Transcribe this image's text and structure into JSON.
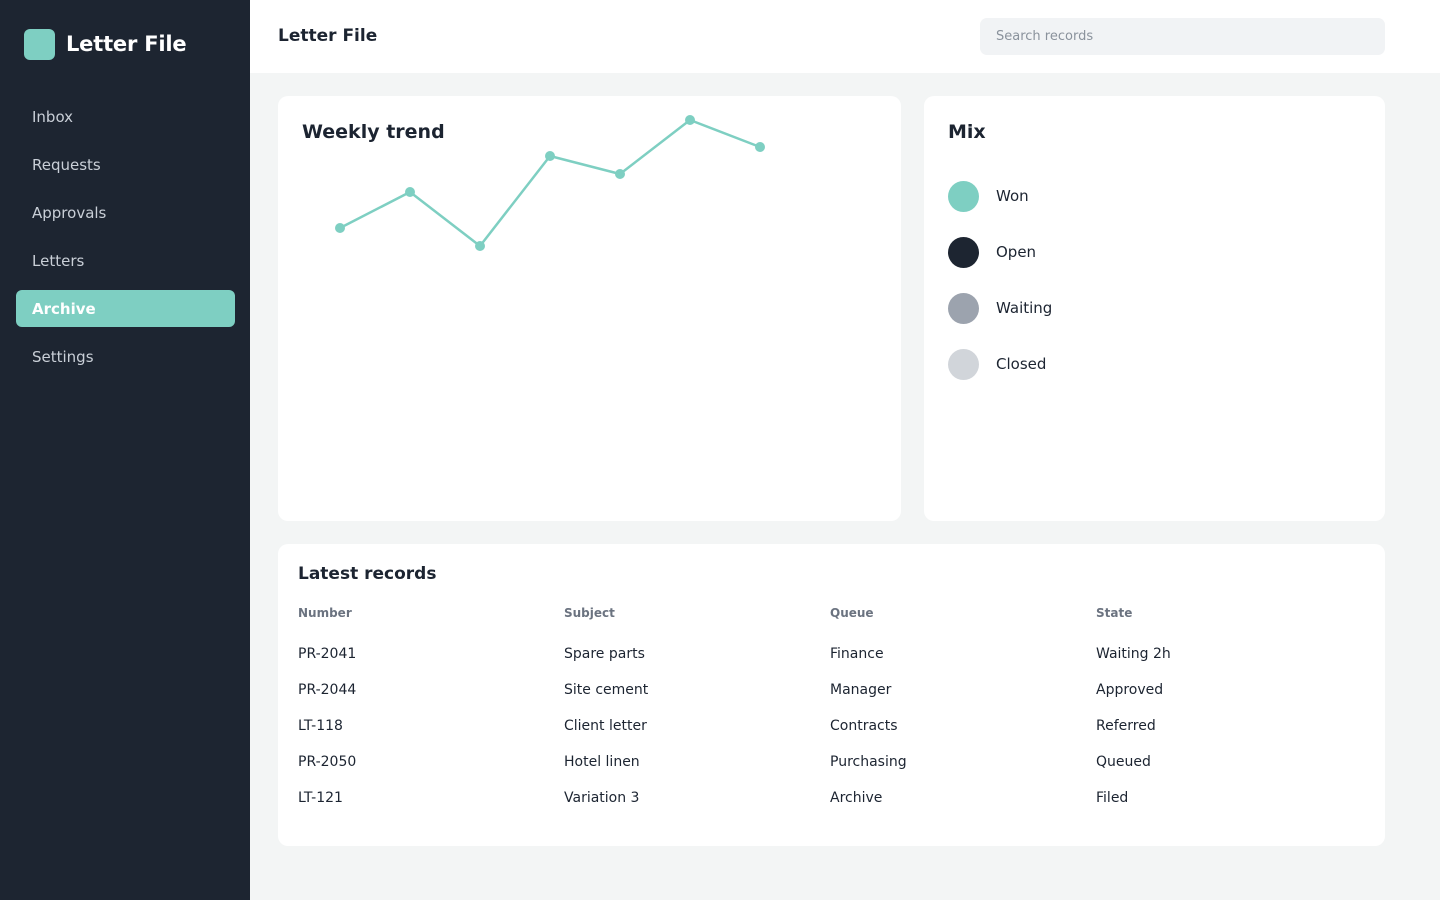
{
  "app": {
    "name": "Letter File"
  },
  "sidebar": {
    "items": [
      {
        "label": "Inbox",
        "active": false
      },
      {
        "label": "Requests",
        "active": false
      },
      {
        "label": "Approvals",
        "active": false
      },
      {
        "label": "Letters",
        "active": false
      },
      {
        "label": "Archive",
        "active": true
      },
      {
        "label": "Settings",
        "active": false
      }
    ]
  },
  "header": {
    "title": "Letter File",
    "search_placeholder": "Search records"
  },
  "colors": {
    "accent": "#7ecfc2",
    "sidebar_bg": "#1d2531",
    "won": "#7ecfc2",
    "open": "#1d2531",
    "waiting": "#9ca3ae",
    "closed": "#d1d5da"
  },
  "trend": {
    "title": "Weekly trend"
  },
  "chart_data": {
    "type": "line",
    "title": "Weekly trend",
    "x": [
      1,
      2,
      3,
      4,
      5,
      6,
      7
    ],
    "series": [
      {
        "values": [
          40,
          60,
          30,
          80,
          70,
          100,
          85
        ]
      }
    ],
    "ylim": [
      0,
      100
    ],
    "grid": false
  },
  "mix": {
    "title": "Mix",
    "items": [
      {
        "label": "Won",
        "color": "#7ecfc2"
      },
      {
        "label": "Open",
        "color": "#1d2531"
      },
      {
        "label": "Waiting",
        "color": "#9ca3ae"
      },
      {
        "label": "Closed",
        "color": "#d1d5da"
      }
    ]
  },
  "records": {
    "title": "Latest records",
    "columns": [
      "Number",
      "Subject",
      "Queue",
      "State"
    ],
    "rows": [
      [
        "PR-2041",
        "Spare parts",
        "Finance",
        "Waiting 2h"
      ],
      [
        "PR-2044",
        "Site cement",
        "Manager",
        "Approved"
      ],
      [
        "LT-118",
        "Client letter",
        "Contracts",
        "Referred"
      ],
      [
        "PR-2050",
        "Hotel linen",
        "Purchasing",
        "Queued"
      ],
      [
        "LT-121",
        "Variation 3",
        "Archive",
        "Filed"
      ]
    ]
  }
}
